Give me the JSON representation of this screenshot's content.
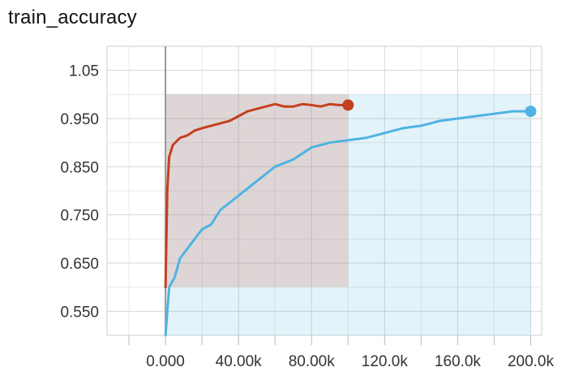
{
  "chart_data": {
    "type": "line",
    "title": "train_accuracy",
    "xlabel": "",
    "ylabel": "",
    "xlim": [
      -32000,
      206000
    ],
    "ylim": [
      0.5,
      1.1
    ],
    "grid": true,
    "x_ticks": [
      0,
      40000,
      80000,
      120000,
      160000,
      200000
    ],
    "x_tick_labels": [
      "0.000",
      "40.00k",
      "80.00k",
      "120.0k",
      "160.0k",
      "200.0k"
    ],
    "y_ticks": [
      0.55,
      0.65,
      0.75,
      0.85,
      0.95,
      1.05
    ],
    "y_tick_labels": [
      "0.550",
      "0.650",
      "0.750",
      "0.850",
      "0.950",
      "1.05"
    ],
    "series": [
      {
        "color": "#c53f1f",
        "raw_band": [
          0.6,
          1.0
        ],
        "end_marker": true,
        "x": [
          0,
          1000,
          2000,
          4000,
          8000,
          12000,
          16000,
          20000,
          25000,
          30000,
          35000,
          40000,
          45000,
          50000,
          55000,
          60000,
          65000,
          70000,
          75000,
          80000,
          85000,
          90000,
          95000,
          100000
        ],
        "y": [
          0.6,
          0.8,
          0.87,
          0.895,
          0.91,
          0.915,
          0.925,
          0.93,
          0.935,
          0.94,
          0.945,
          0.955,
          0.965,
          0.97,
          0.975,
          0.98,
          0.975,
          0.975,
          0.98,
          0.978,
          0.975,
          0.98,
          0.978,
          0.978
        ]
      },
      {
        "color": "#4fb3e3",
        "raw_band": [
          0.5,
          1.0
        ],
        "end_marker": true,
        "x": [
          0,
          2000,
          5000,
          8000,
          12000,
          16000,
          20000,
          25000,
          30000,
          40000,
          50000,
          60000,
          70000,
          80000,
          90000,
          100000,
          110000,
          120000,
          130000,
          140000,
          150000,
          160000,
          170000,
          180000,
          190000,
          200000
        ],
        "y": [
          0.5,
          0.6,
          0.62,
          0.66,
          0.68,
          0.7,
          0.72,
          0.73,
          0.76,
          0.79,
          0.82,
          0.85,
          0.865,
          0.89,
          0.9,
          0.905,
          0.91,
          0.92,
          0.93,
          0.935,
          0.945,
          0.95,
          0.955,
          0.96,
          0.965,
          0.965
        ]
      }
    ]
  }
}
